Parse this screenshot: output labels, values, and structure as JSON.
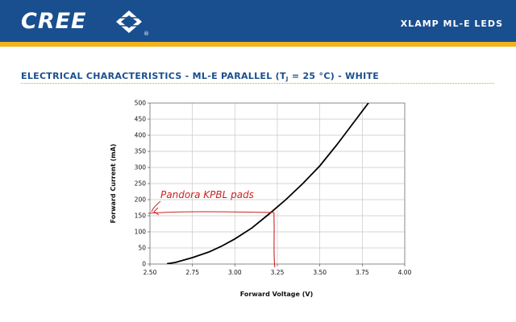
{
  "header": {
    "brand": "CREE",
    "registered_mark": "®",
    "product_line": "XLAMP ML-E LEDS"
  },
  "page_title": {
    "prefix": "ELECTRICAL CHARACTERISTICS - ML-E PARALLEL (T",
    "subscript": "J",
    "suffix": " = 25 °C) - WHITE"
  },
  "colors": {
    "header_blue": "#1a4f8f",
    "accent_gold": "#f2b21b",
    "annotation_red": "#cc2222"
  },
  "chart_data": {
    "type": "line",
    "title": "",
    "xlabel": "Forward Voltage (V)",
    "ylabel": "Forward Current (mA)",
    "xlim": [
      2.5,
      4.0
    ],
    "ylim": [
      0,
      500
    ],
    "xticks": [
      "2.50",
      "2.75",
      "3.00",
      "3.25",
      "3.50",
      "3.75",
      "4.00"
    ],
    "yticks": [
      "0",
      "50",
      "100",
      "150",
      "200",
      "250",
      "300",
      "350",
      "400",
      "450",
      "500"
    ],
    "grid": true,
    "series": [
      {
        "x": [
          2.6,
          2.65,
          2.75,
          2.85,
          2.92,
          3.0,
          3.1,
          3.2,
          3.3,
          3.4,
          3.5,
          3.6,
          3.7,
          3.8
        ],
        "y": [
          1,
          5,
          20,
          38,
          55,
          78,
          112,
          155,
          200,
          250,
          305,
          370,
          440,
          510
        ]
      }
    ],
    "annotation": {
      "text": "Pandora KPBL pads",
      "x": 3.23,
      "y": 160
    }
  }
}
